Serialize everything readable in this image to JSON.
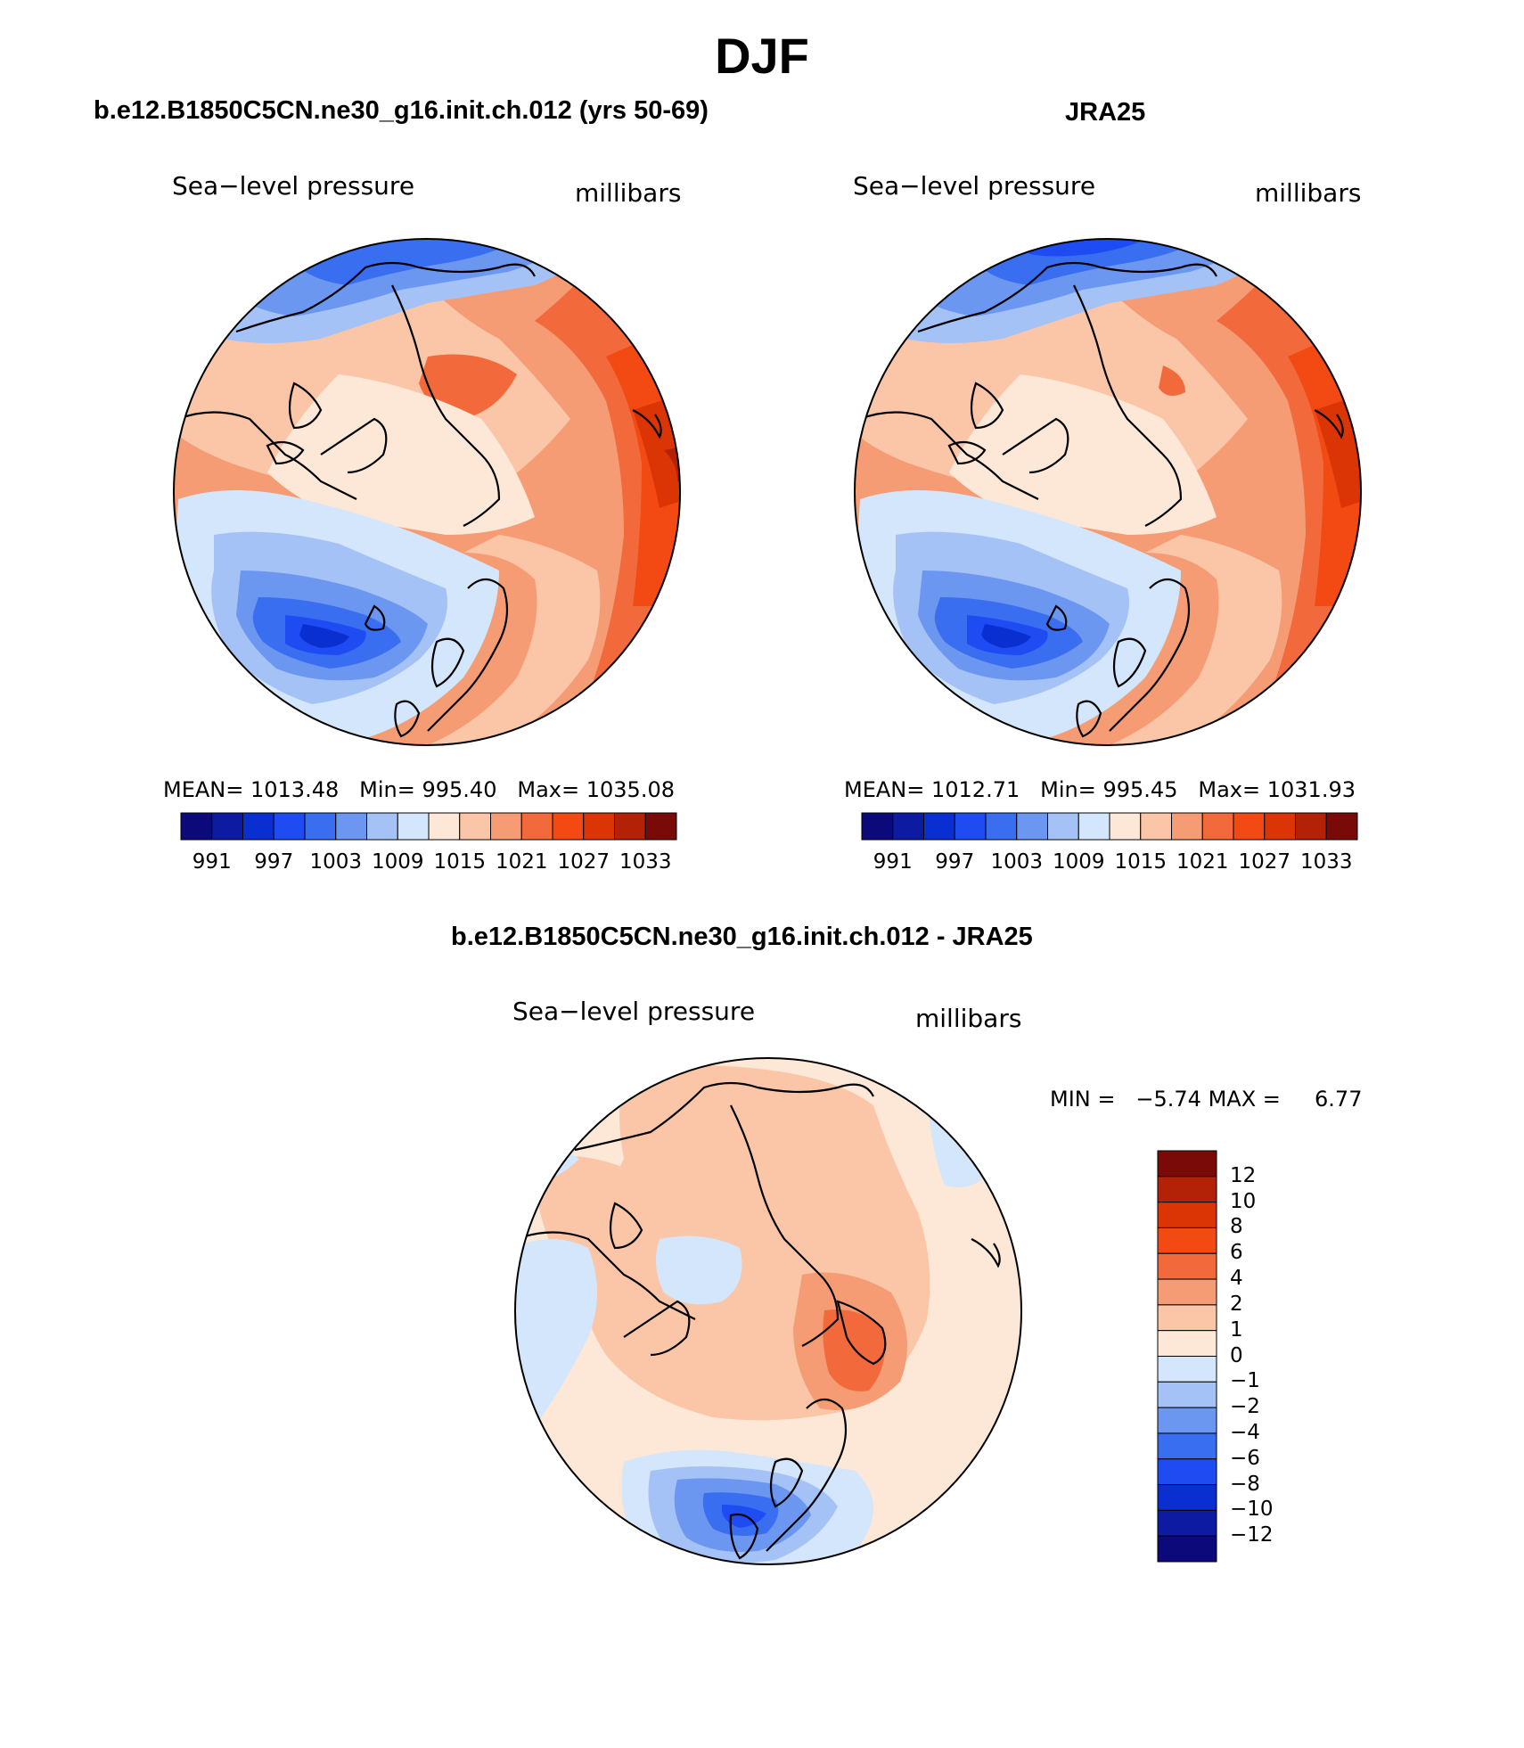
{
  "title": "DJF",
  "colors": {
    "scale": [
      "#0c0a7a",
      "#0d1ba3",
      "#0a2fd1",
      "#1e4cf2",
      "#3a6ef0",
      "#6c97f0",
      "#a4c2f5",
      "#d3e6fb",
      "#fde8d8",
      "#fbc6a8",
      "#f59c74",
      "#f26a3c",
      "#f24a12",
      "#db3506",
      "#b32207",
      "#7a0a07"
    ],
    "diff_scale": [
      "#0c0a7a",
      "#0d1ba3",
      "#0a2fd1",
      "#1e4cf2",
      "#3a6ef0",
      "#6c97f0",
      "#a4c2f5",
      "#d3e6fb",
      "#fde8d8",
      "#fbc6a8",
      "#f59c74",
      "#f26a3c",
      "#f24a12",
      "#db3506",
      "#b32207",
      "#7a0a07"
    ],
    "coastline": "#000000"
  },
  "panels": [
    {
      "title": "b.e12.B1850C5CN.ne30_g16.init.ch.012 (yrs 50-69)",
      "variable": "Sea−level pressure",
      "units": "millibars",
      "stats": {
        "mean_label": "MEAN=",
        "mean": "1013.48",
        "min_label": "Min=",
        "min": "995.40",
        "max_label": "Max=",
        "max": "1035.08"
      },
      "colorbar_labels": [
        "991",
        "997",
        "1003",
        "1009",
        "1015",
        "1021",
        "1027",
        "1033"
      ]
    },
    {
      "title": "JRA25",
      "variable": "Sea−level pressure",
      "units": "millibars",
      "stats": {
        "mean_label": "MEAN=",
        "mean": "1012.71",
        "min_label": "Min=",
        "min": "995.45",
        "max_label": "Max=",
        "max": "1031.93"
      },
      "colorbar_labels": [
        "991",
        "997",
        "1003",
        "1009",
        "1015",
        "1021",
        "1027",
        "1033"
      ]
    }
  ],
  "difference": {
    "title": "b.e12.B1850C5CN.ne30_g16.init.ch.012 - JRA25",
    "variable": "Sea−level pressure",
    "units": "millibars",
    "min_label": "MIN =",
    "min": "−5.74",
    "max_label": "MAX =",
    "max": "6.77",
    "colorbar_labels": [
      "12",
      "10",
      "8",
      "6",
      "4",
      "2",
      "1",
      "0",
      "−1",
      "−2",
      "−4",
      "−6",
      "−8",
      "−10",
      "−12"
    ]
  }
}
